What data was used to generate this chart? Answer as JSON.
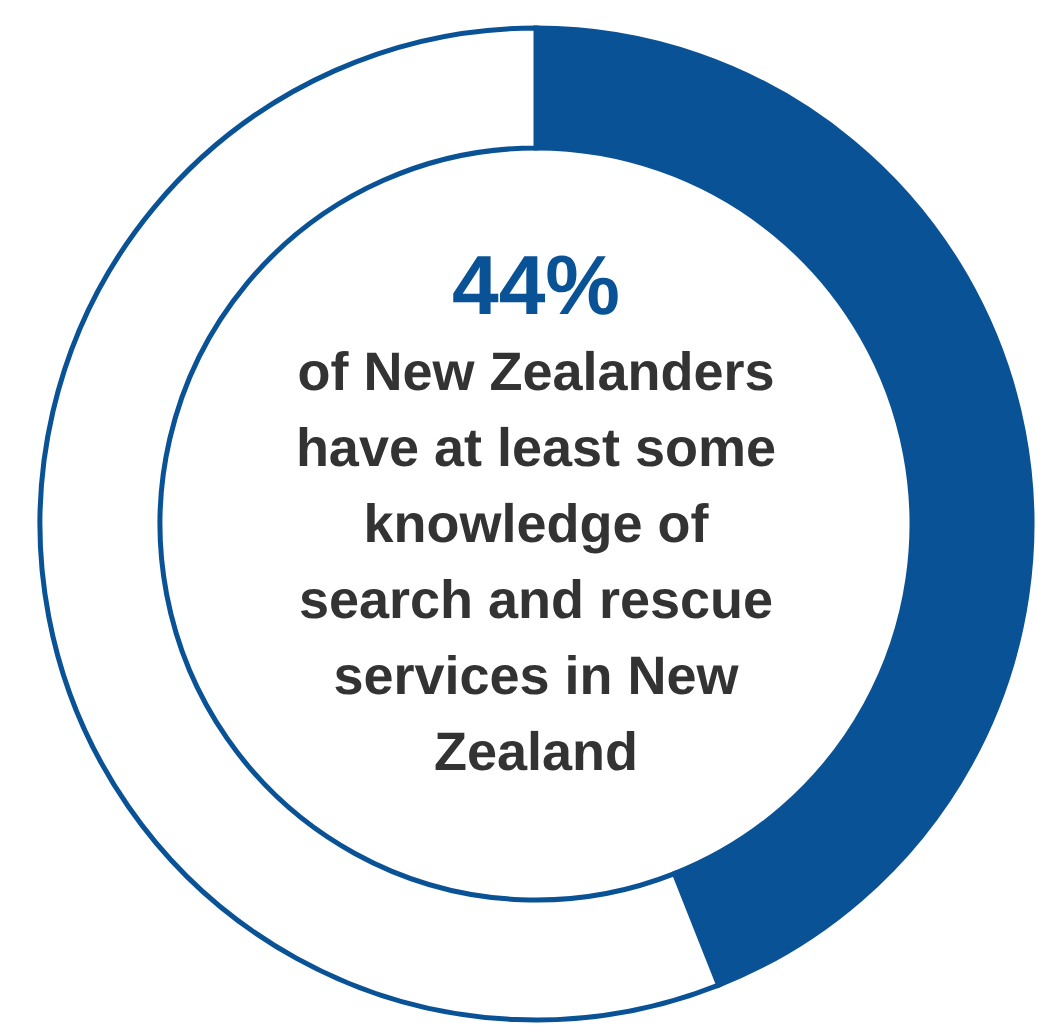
{
  "chart_data": {
    "type": "donut",
    "categories": [
      null,
      null
    ],
    "values": [
      44,
      56
    ],
    "colors": [
      "#0a5296",
      "#ffffff"
    ],
    "value_labels": [
      "44%",
      null
    ],
    "annotations": [
      "of New Zealanders\nhave at least some\nknowledge of\nsearch and rescue\nservices in New\nZealand"
    ]
  }
}
